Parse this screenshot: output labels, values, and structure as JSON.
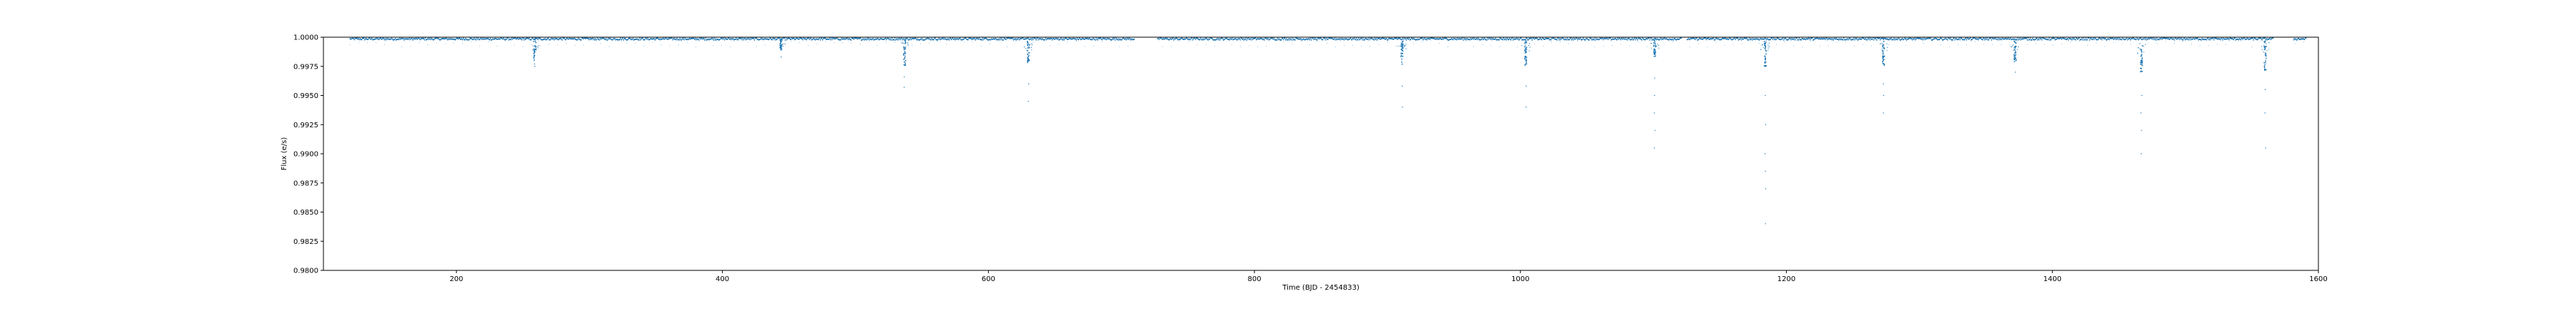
{
  "chart_data": {
    "type": "scatter",
    "title": "",
    "xlabel": "Time (BJD - 2454833)",
    "ylabel": "Flux (e/s)",
    "xlim": [
      100,
      1600
    ],
    "ylim": [
      0.98,
      1.0
    ],
    "x_ticks": [
      200,
      400,
      600,
      800,
      1000,
      1200,
      1400,
      1600
    ],
    "y_ticks": [
      0.98,
      0.9825,
      0.985,
      0.9875,
      0.99,
      0.9925,
      0.995,
      0.9975,
      1.0
    ],
    "x_tick_labels": [
      "200",
      "400",
      "600",
      "800",
      "1000",
      "1200",
      "1400",
      "1600"
    ],
    "y_tick_labels": [
      "0.9800",
      "0.9825",
      "0.9850",
      "0.9875",
      "0.9900",
      "0.9925",
      "0.9950",
      "0.9975",
      "1.0000"
    ],
    "grid": false,
    "color": "#1f77b4",
    "observation_span": [
      120,
      1591
    ],
    "baseline_flux": 0.99985,
    "data_gaps": [
      [
        710,
        727
      ],
      [
        1121,
        1125
      ],
      [
        1566,
        1581
      ]
    ],
    "transits": [
      {
        "x": 259,
        "min_flux": 0.998,
        "outlier_flux": [
          0.9975,
          0.9977
        ]
      },
      {
        "x": 444,
        "min_flux": 0.9989,
        "outlier_flux": [
          0.9983
        ]
      },
      {
        "x": 537,
        "min_flux": 0.9975,
        "outlier_flux": [
          0.9966,
          0.9957
        ]
      },
      {
        "x": 630,
        "min_flux": 0.9978,
        "outlier_flux": [
          0.996,
          0.9945
        ]
      },
      {
        "x": 911,
        "min_flux": 0.9976,
        "outlier_flux": [
          0.9958,
          0.994
        ]
      },
      {
        "x": 1004,
        "min_flux": 0.9976,
        "outlier_flux": [
          0.9958,
          0.994
        ]
      },
      {
        "x": 1101,
        "min_flux": 0.9983,
        "outlier_flux": [
          0.9965,
          0.995,
          0.9935,
          0.992,
          0.9905
        ]
      },
      {
        "x": 1184,
        "min_flux": 0.9975,
        "outlier_flux": [
          0.995,
          0.9925,
          0.99,
          0.9885,
          0.987,
          0.984
        ]
      },
      {
        "x": 1273,
        "min_flux": 0.9976,
        "outlier_flux": [
          0.996,
          0.995,
          0.9935
        ]
      },
      {
        "x": 1372,
        "min_flux": 0.9979,
        "outlier_flux": [
          0.997
        ]
      },
      {
        "x": 1467,
        "min_flux": 0.997,
        "outlier_flux": [
          0.995,
          0.9935,
          0.992,
          0.99
        ]
      },
      {
        "x": 1560,
        "min_flux": 0.9971,
        "outlier_flux": [
          0.9955,
          0.9935,
          0.9905
        ]
      }
    ]
  }
}
